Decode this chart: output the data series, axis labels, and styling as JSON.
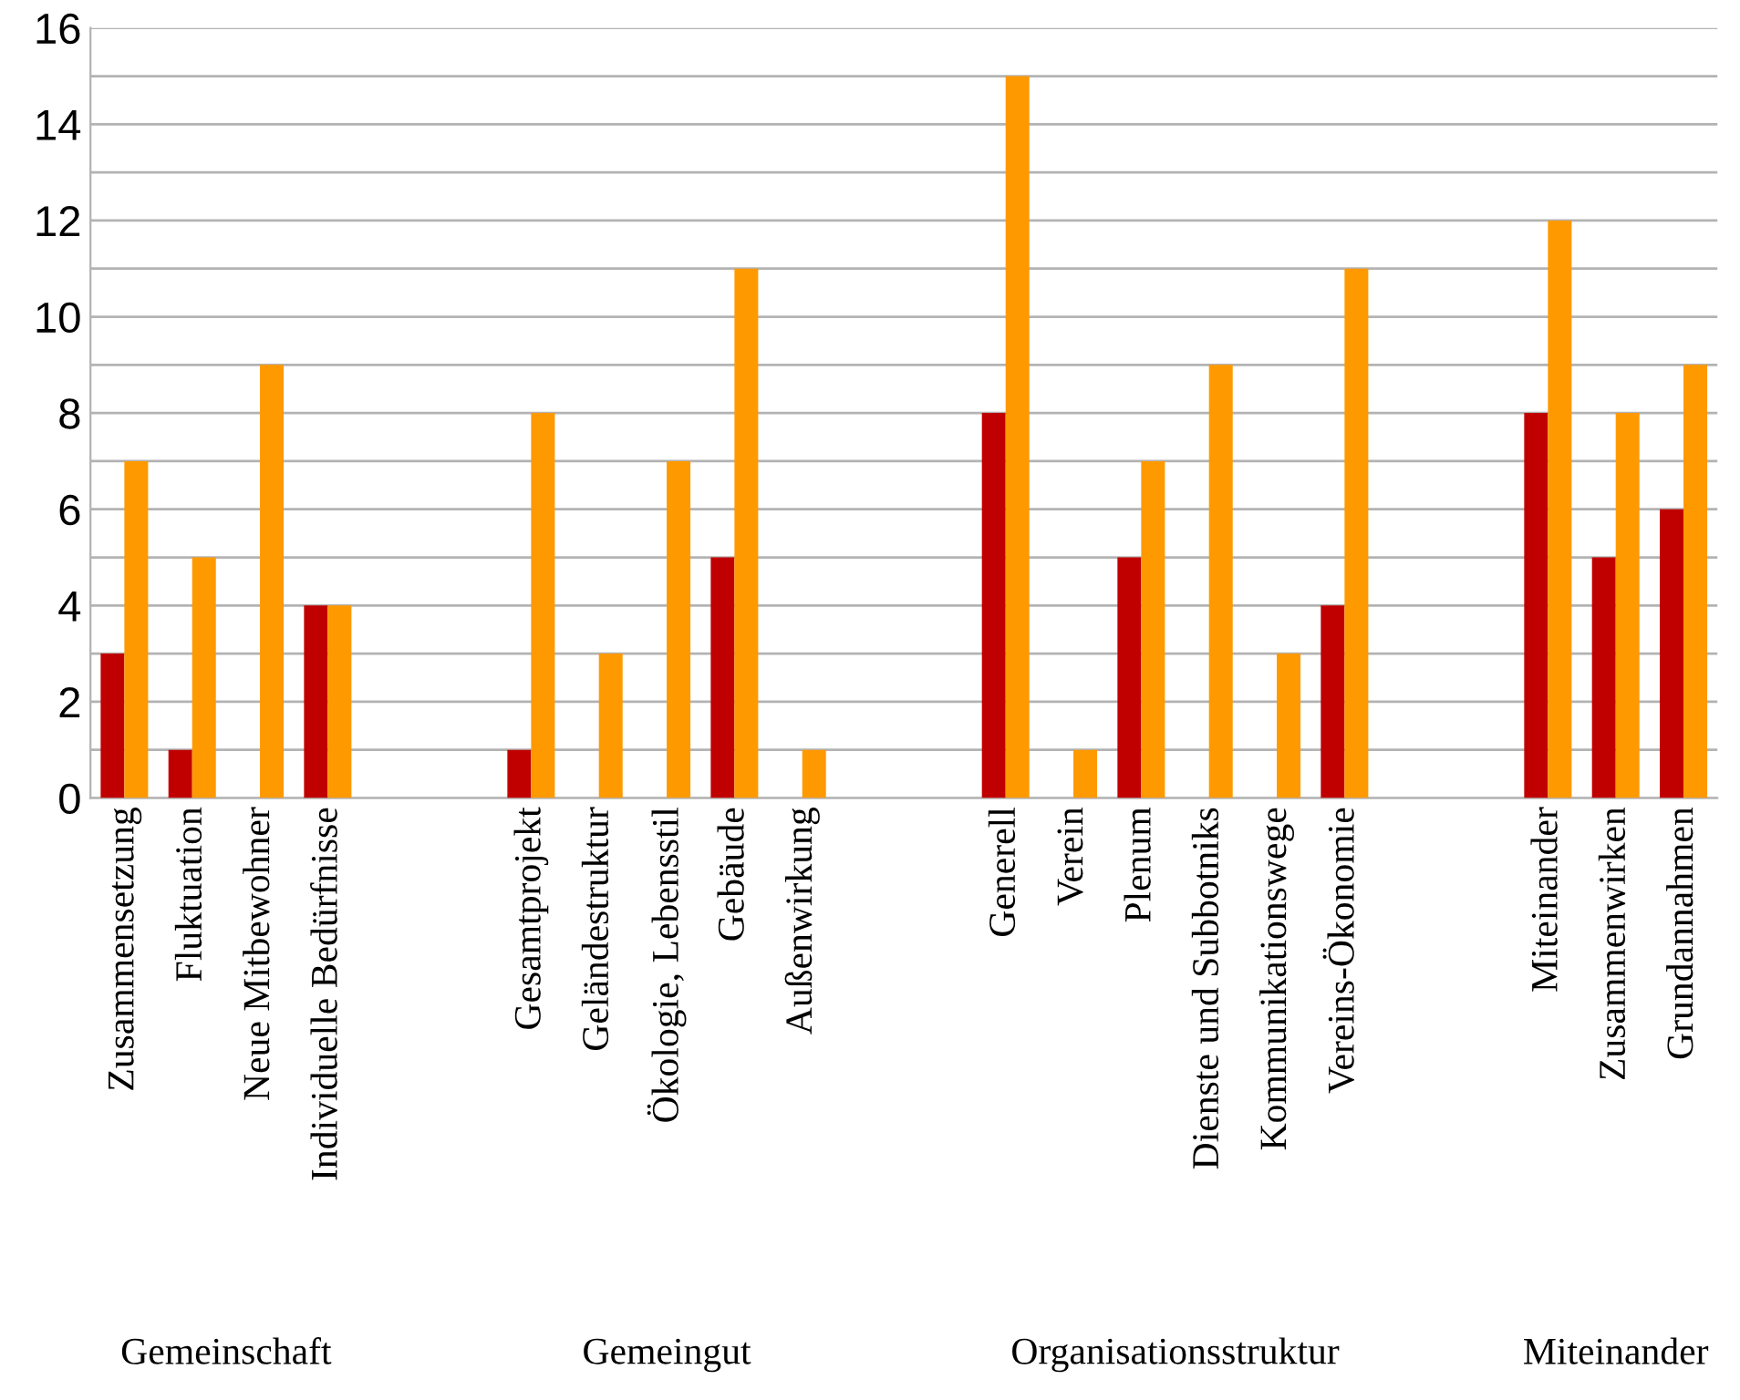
{
  "chart_data": {
    "type": "bar",
    "categories": [
      "Zusammensetzung",
      "Fluktuation",
      "Neue Mitbewohner",
      "Individuelle Bedürfnisse",
      null,
      null,
      "Gesamtprojekt",
      "Geländestruktur",
      "Ökologie, Lebensstil",
      "Gebäude",
      "Außenwirkung",
      null,
      null,
      "Generell",
      "Verein",
      "Plenum",
      "Dienste und Subbotniks",
      "Kommunikationswege",
      "Vereins-Ökonomie",
      null,
      null,
      "Miteinander",
      "Zusammenwirken",
      "Grundannahmen"
    ],
    "series": [
      {
        "color": "#c00000",
        "values": [
          3,
          1,
          0,
          4,
          null,
          null,
          1,
          0,
          0,
          5,
          0,
          null,
          null,
          8,
          0,
          5,
          0,
          0,
          4,
          null,
          null,
          8,
          5,
          6
        ]
      },
      {
        "color": "#ff9900",
        "values": [
          7,
          5,
          9,
          4,
          null,
          null,
          8,
          3,
          7,
          11,
          1,
          null,
          null,
          15,
          1,
          7,
          9,
          3,
          11,
          null,
          null,
          12,
          8,
          9
        ]
      }
    ],
    "annotations": [
      "Gemeinschaft",
      "Gemeingut",
      "Organisationsstruktur",
      "Miteinander"
    ],
    "ylim": [
      0,
      16
    ],
    "yticks": [
      0,
      {
        "value": 1,
        "label": null
      },
      2,
      {
        "value": 3,
        "label": null
      },
      4,
      {
        "value": 5,
        "label": null
      },
      6,
      {
        "value": 7,
        "label": null
      },
      8,
      {
        "value": 9,
        "label": null
      },
      10,
      {
        "value": 11,
        "label": null
      },
      12,
      {
        "value": 13,
        "label": null
      },
      14,
      {
        "value": 15,
        "label": null
      },
      16
    ],
    "grid": "y"
  }
}
